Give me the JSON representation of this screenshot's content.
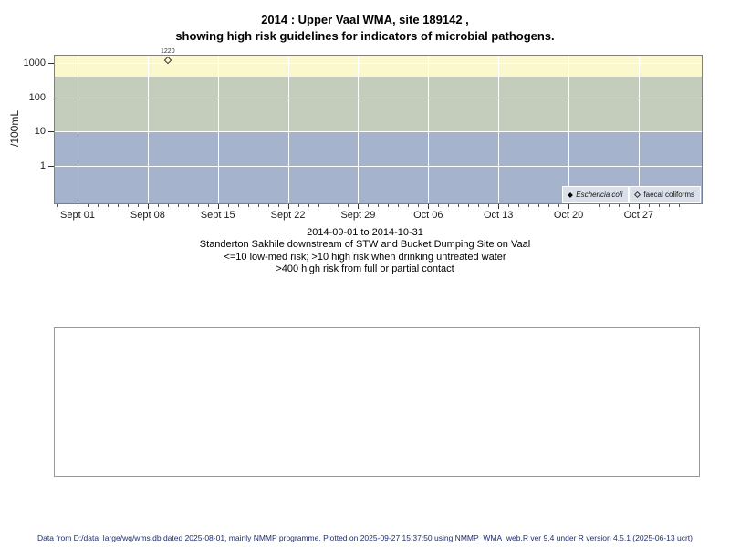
{
  "title": {
    "line1": "2014 : Upper Vaal WMA, site 189142 ,",
    "line2": "showing high risk guidelines for indicators of microbial pathogens."
  },
  "chart_data": {
    "type": "scatter",
    "title": "2014 : Upper Vaal WMA, site 189142 , showing high risk guidelines for indicators of microbial pathogens.",
    "ylabel": "/100mL",
    "y_scale": "log10",
    "y_range": [
      0.08,
      1620
    ],
    "y_ticks": [
      1,
      10,
      100,
      1000
    ],
    "x_axis": {
      "start_date": "2014-09-01",
      "end_date": "2014-10-31",
      "tick_labels": [
        "Sept 01",
        "Sept 08",
        "Sept 15",
        "Sept 22",
        "Sept 29",
        "Oct 06",
        "Oct 13",
        "Oct 20",
        "Oct 27"
      ],
      "tick_days": [
        0,
        7,
        14,
        21,
        28,
        35,
        42,
        49,
        56
      ],
      "minor_tick_day_range": [
        -2,
        60
      ]
    },
    "risk_bands": [
      {
        "name": "high-risk-contact",
        "from": 400,
        "to": 1620,
        "color": "#FBF8CD"
      },
      {
        "name": "high-risk-drinking",
        "from": 10,
        "to": 400,
        "color": "#C4CCBC"
      },
      {
        "name": "low-med-risk",
        "from": 0.08,
        "to": 10,
        "color": "#A5B3CC"
      }
    ],
    "series": [
      {
        "name": "Eschericia coli",
        "marker": "filled-diamond",
        "points": []
      },
      {
        "name": "faecal coliforms",
        "marker": "open-diamond",
        "points": [
          {
            "day": 9,
            "date": "2014-09-10",
            "value": 1220,
            "label": "1220"
          }
        ]
      }
    ],
    "legend_position": "bottom-right",
    "grid": "white vertical weekly lines and horizontal decade lines"
  },
  "captions": [
    "2014-09-01 to 2014-10-31",
    "Standerton Sakhile downstream of STW and Bucket Dumping Site on Vaal",
    "<=10 low-med risk; >10 high risk when drinking untreated water",
    ">400 high risk from full or partial contact"
  ],
  "footer": "Data from D:/data_large/wq/wms.db dated 2025-08-01, mainly NMMP programme. Plotted on 2025-09-27 15:37:50 using NMMP_WMA_web.R ver 9.4 under R version 4.5.1 (2025-06-13 ucrt)",
  "colors": {
    "band_yellow": "#FBF8CD",
    "band_green": "#C4CCBC",
    "band_blue": "#A5B3CC",
    "legend_bg": "#DAE0EA",
    "plot_border": "#7F7F7F",
    "grid": "#FFFFFF",
    "footer_text": "#1F2E6E",
    "axis_text": "#222222"
  }
}
